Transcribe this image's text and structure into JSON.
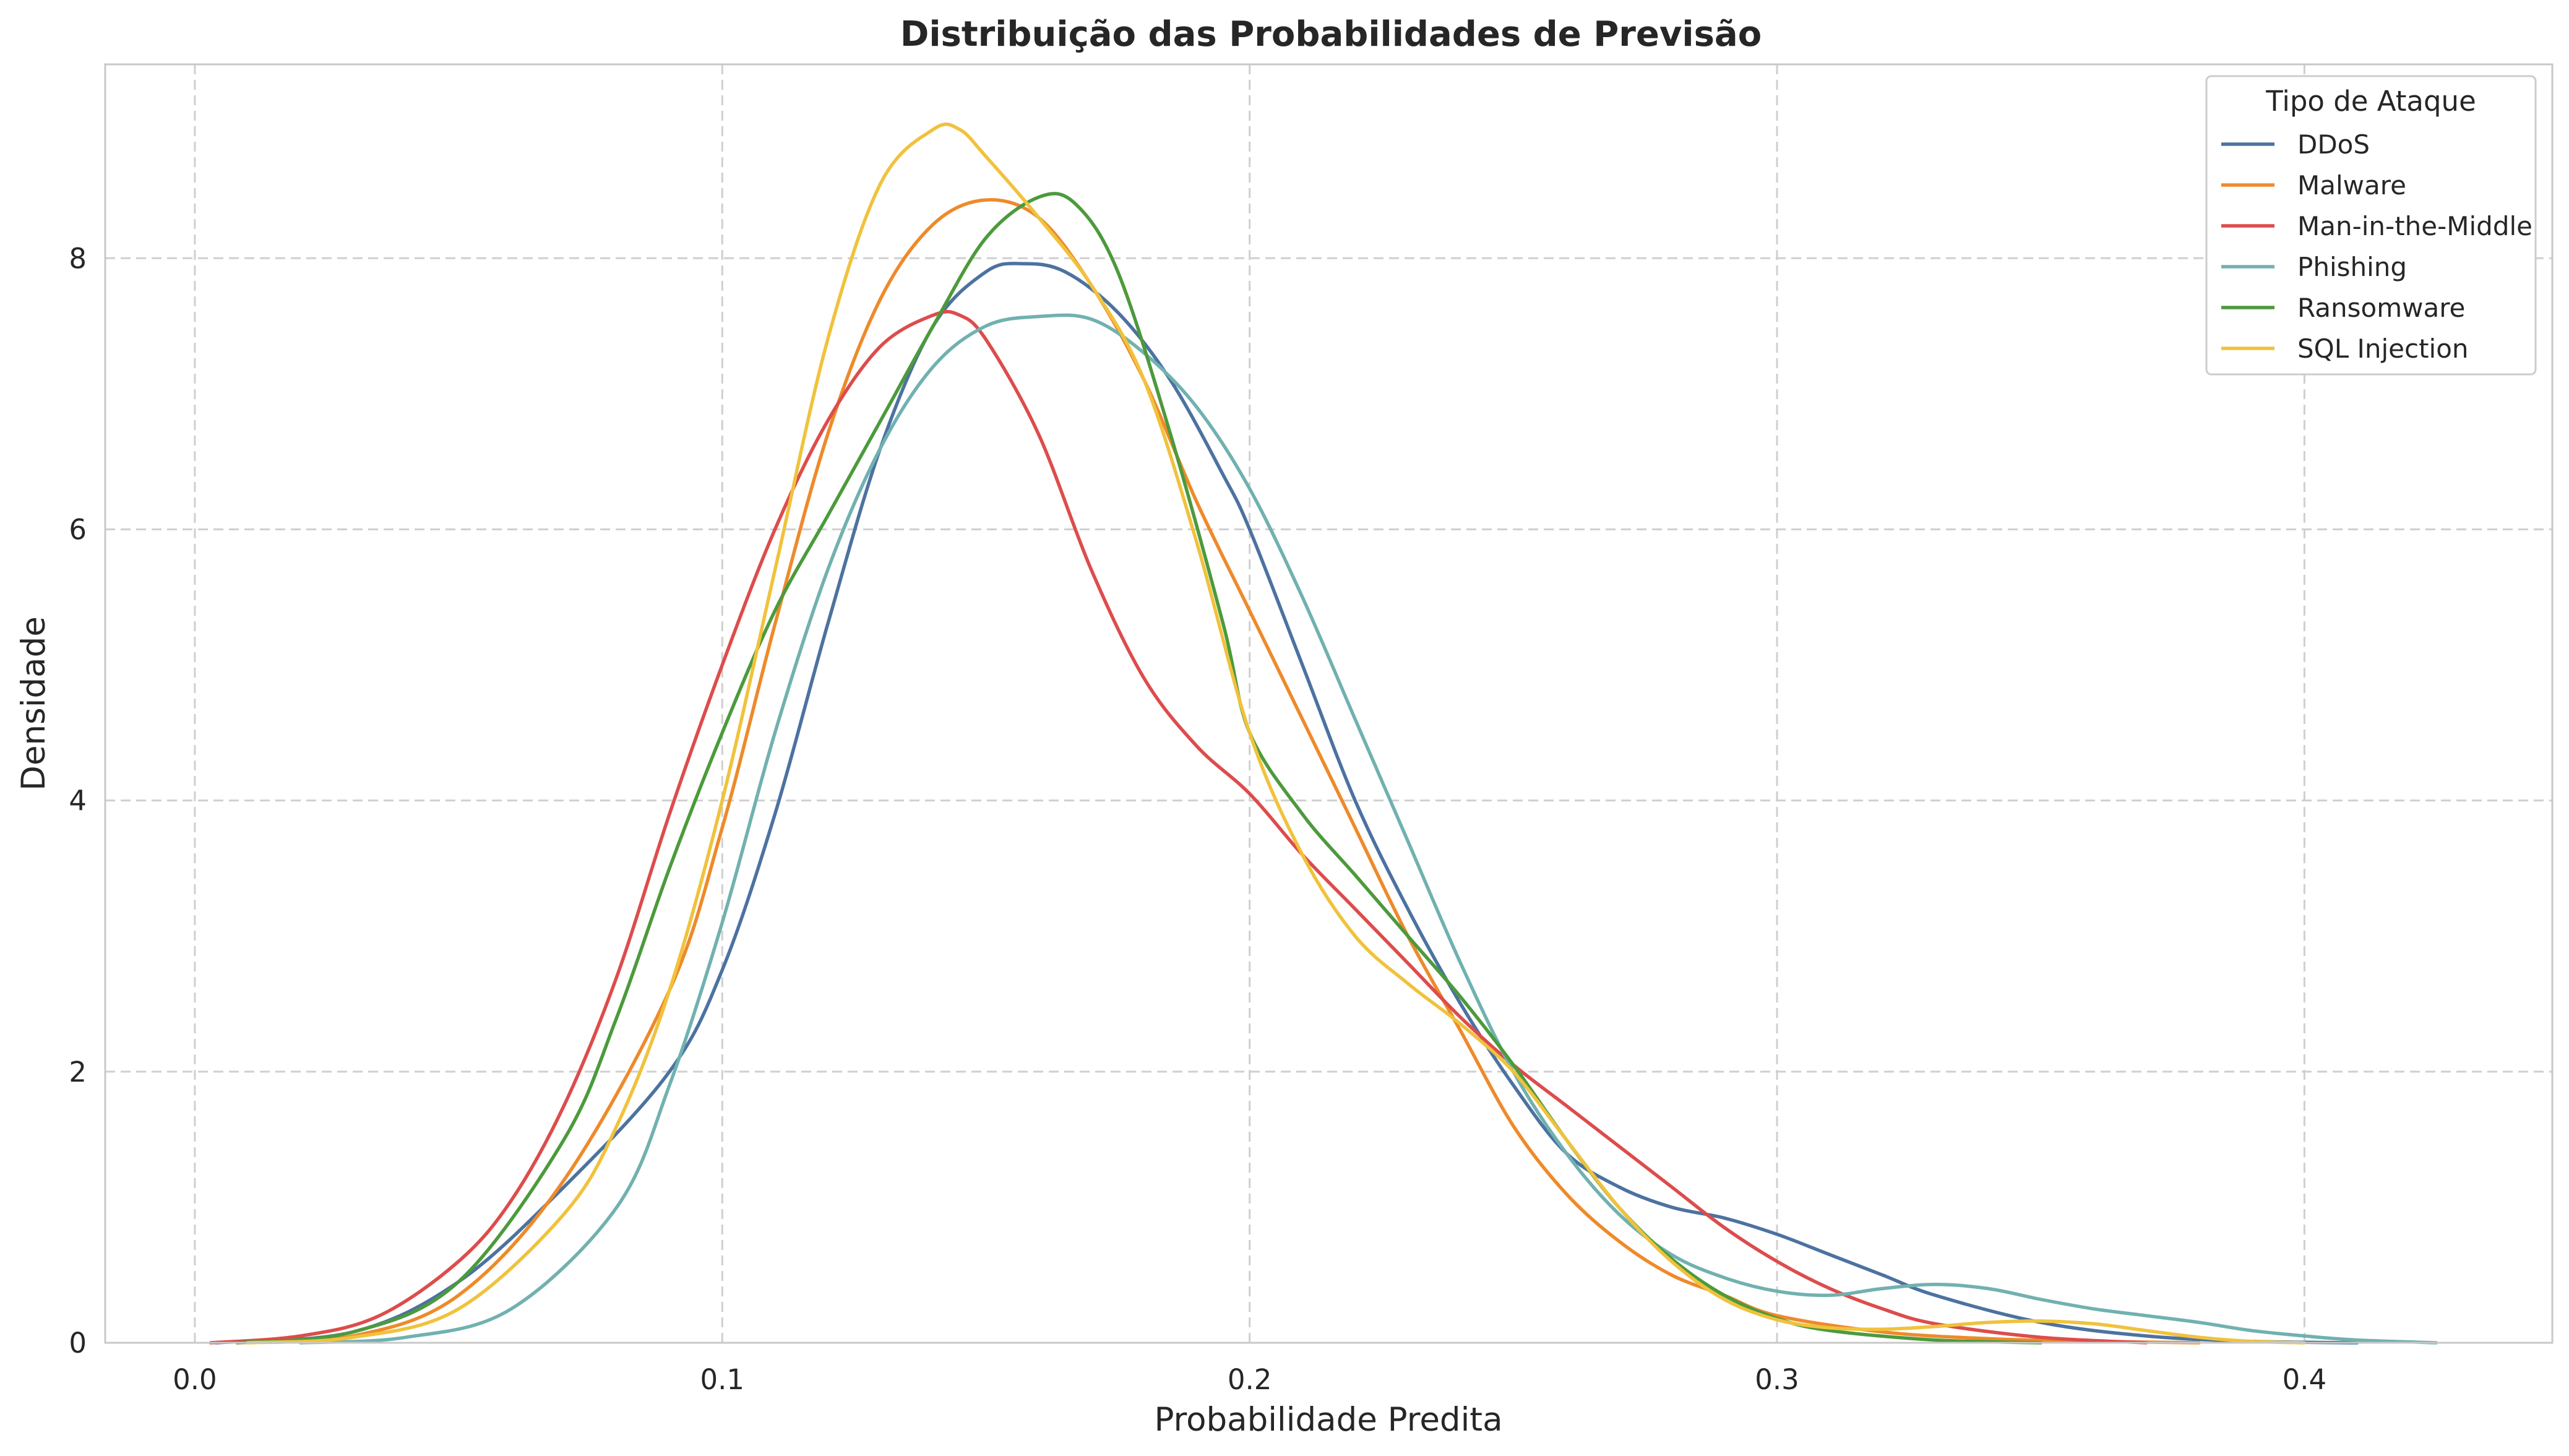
{
  "chart_data": {
    "type": "line",
    "title": "Distribuição das Probabilidades de Previsão",
    "xlabel": "Probabilidade Predita",
    "ylabel": "Densidade",
    "xlim": [
      -0.017,
      0.447
    ],
    "ylim": [
      0,
      9.43
    ],
    "xticks": [
      0.0,
      0.1,
      0.2,
      0.3,
      0.4
    ],
    "xtick_labels": [
      "0.0",
      "0.1",
      "0.2",
      "0.3",
      "0.4"
    ],
    "yticks": [
      0,
      2,
      4,
      6,
      8
    ],
    "ytick_labels": [
      "0",
      "2",
      "4",
      "6",
      "8"
    ],
    "grid": true,
    "legend": {
      "title": "Tipo de Ataque",
      "position": "top-right"
    },
    "series": [
      {
        "name": "DDoS",
        "color": "#4c72a0",
        "points": [
          [
            0.004,
            0
          ],
          [
            0.03,
            0.08
          ],
          [
            0.05,
            0.45
          ],
          [
            0.07,
            1.15
          ],
          [
            0.09,
            2.0
          ],
          [
            0.1,
            2.75
          ],
          [
            0.11,
            3.9
          ],
          [
            0.12,
            5.3
          ],
          [
            0.13,
            6.6
          ],
          [
            0.14,
            7.5
          ],
          [
            0.15,
            7.9
          ],
          [
            0.157,
            7.96
          ],
          [
            0.165,
            7.9
          ],
          [
            0.175,
            7.6
          ],
          [
            0.185,
            7.1
          ],
          [
            0.195,
            6.4
          ],
          [
            0.2,
            6.0
          ],
          [
            0.21,
            5.0
          ],
          [
            0.22,
            4.0
          ],
          [
            0.23,
            3.2
          ],
          [
            0.24,
            2.5
          ],
          [
            0.25,
            1.9
          ],
          [
            0.26,
            1.4
          ],
          [
            0.27,
            1.15
          ],
          [
            0.28,
            1.0
          ],
          [
            0.29,
            0.92
          ],
          [
            0.3,
            0.8
          ],
          [
            0.31,
            0.65
          ],
          [
            0.32,
            0.5
          ],
          [
            0.33,
            0.35
          ],
          [
            0.35,
            0.15
          ],
          [
            0.37,
            0.05
          ],
          [
            0.39,
            0.01
          ],
          [
            0.41,
            0
          ]
        ]
      },
      {
        "name": "Malware",
        "color": "#ee8a2a",
        "points": [
          [
            0.008,
            0
          ],
          [
            0.03,
            0.05
          ],
          [
            0.05,
            0.35
          ],
          [
            0.07,
            1.2
          ],
          [
            0.09,
            2.6
          ],
          [
            0.1,
            3.8
          ],
          [
            0.11,
            5.3
          ],
          [
            0.12,
            6.7
          ],
          [
            0.13,
            7.7
          ],
          [
            0.14,
            8.25
          ],
          [
            0.15,
            8.43
          ],
          [
            0.16,
            8.3
          ],
          [
            0.17,
            7.8
          ],
          [
            0.18,
            7.1
          ],
          [
            0.19,
            6.2
          ],
          [
            0.2,
            5.4
          ],
          [
            0.21,
            4.6
          ],
          [
            0.22,
            3.8
          ],
          [
            0.23,
            3.0
          ],
          [
            0.24,
            2.3
          ],
          [
            0.25,
            1.6
          ],
          [
            0.26,
            1.1
          ],
          [
            0.27,
            0.75
          ],
          [
            0.28,
            0.5
          ],
          [
            0.29,
            0.35
          ],
          [
            0.3,
            0.2
          ],
          [
            0.32,
            0.08
          ],
          [
            0.34,
            0.03
          ],
          [
            0.36,
            0.01
          ],
          [
            0.38,
            0
          ]
        ]
      },
      {
        "name": "Man-in-the-Middle",
        "color": "#dd4c4c",
        "points": [
          [
            0.003,
            0
          ],
          [
            0.02,
            0.05
          ],
          [
            0.035,
            0.2
          ],
          [
            0.05,
            0.6
          ],
          [
            0.06,
            1.05
          ],
          [
            0.07,
            1.75
          ],
          [
            0.08,
            2.7
          ],
          [
            0.09,
            3.9
          ],
          [
            0.1,
            5.0
          ],
          [
            0.11,
            6.0
          ],
          [
            0.12,
            6.8
          ],
          [
            0.13,
            7.35
          ],
          [
            0.14,
            7.58
          ],
          [
            0.145,
            7.58
          ],
          [
            0.15,
            7.4
          ],
          [
            0.16,
            6.7
          ],
          [
            0.17,
            5.7
          ],
          [
            0.18,
            4.9
          ],
          [
            0.19,
            4.4
          ],
          [
            0.2,
            4.05
          ],
          [
            0.21,
            3.6
          ],
          [
            0.22,
            3.2
          ],
          [
            0.23,
            2.8
          ],
          [
            0.24,
            2.4
          ],
          [
            0.25,
            2.05
          ],
          [
            0.26,
            1.75
          ],
          [
            0.27,
            1.45
          ],
          [
            0.28,
            1.15
          ],
          [
            0.29,
            0.85
          ],
          [
            0.3,
            0.6
          ],
          [
            0.31,
            0.4
          ],
          [
            0.32,
            0.25
          ],
          [
            0.33,
            0.14
          ],
          [
            0.35,
            0.04
          ],
          [
            0.37,
            0
          ]
        ]
      },
      {
        "name": "Phishing",
        "color": "#71b1b0",
        "points": [
          [
            0.02,
            0
          ],
          [
            0.04,
            0.04
          ],
          [
            0.06,
            0.25
          ],
          [
            0.08,
            1.0
          ],
          [
            0.09,
            1.9
          ],
          [
            0.1,
            3.1
          ],
          [
            0.11,
            4.5
          ],
          [
            0.12,
            5.7
          ],
          [
            0.13,
            6.6
          ],
          [
            0.14,
            7.2
          ],
          [
            0.15,
            7.5
          ],
          [
            0.16,
            7.57
          ],
          [
            0.17,
            7.55
          ],
          [
            0.18,
            7.3
          ],
          [
            0.19,
            6.9
          ],
          [
            0.2,
            6.3
          ],
          [
            0.21,
            5.5
          ],
          [
            0.22,
            4.6
          ],
          [
            0.23,
            3.7
          ],
          [
            0.24,
            2.8
          ],
          [
            0.25,
            2.0
          ],
          [
            0.26,
            1.4
          ],
          [
            0.27,
            0.95
          ],
          [
            0.28,
            0.65
          ],
          [
            0.29,
            0.48
          ],
          [
            0.3,
            0.38
          ],
          [
            0.31,
            0.35
          ],
          [
            0.32,
            0.4
          ],
          [
            0.33,
            0.43
          ],
          [
            0.34,
            0.4
          ],
          [
            0.35,
            0.32
          ],
          [
            0.36,
            0.25
          ],
          [
            0.37,
            0.2
          ],
          [
            0.38,
            0.15
          ],
          [
            0.39,
            0.09
          ],
          [
            0.4,
            0.05
          ],
          [
            0.41,
            0.02
          ],
          [
            0.425,
            0
          ]
        ]
      },
      {
        "name": "Ransomware",
        "color": "#4c9a3c",
        "points": [
          [
            0.008,
            0
          ],
          [
            0.03,
            0.08
          ],
          [
            0.05,
            0.45
          ],
          [
            0.07,
            1.5
          ],
          [
            0.08,
            2.4
          ],
          [
            0.09,
            3.5
          ],
          [
            0.1,
            4.5
          ],
          [
            0.11,
            5.4
          ],
          [
            0.12,
            6.1
          ],
          [
            0.13,
            6.8
          ],
          [
            0.14,
            7.5
          ],
          [
            0.15,
            8.15
          ],
          [
            0.16,
            8.45
          ],
          [
            0.167,
            8.4
          ],
          [
            0.175,
            7.9
          ],
          [
            0.185,
            6.7
          ],
          [
            0.195,
            5.3
          ],
          [
            0.2,
            4.5
          ],
          [
            0.21,
            3.9
          ],
          [
            0.22,
            3.45
          ],
          [
            0.23,
            3.0
          ],
          [
            0.24,
            2.55
          ],
          [
            0.25,
            2.05
          ],
          [
            0.26,
            1.5
          ],
          [
            0.27,
            1.0
          ],
          [
            0.28,
            0.62
          ],
          [
            0.29,
            0.35
          ],
          [
            0.3,
            0.18
          ],
          [
            0.31,
            0.09
          ],
          [
            0.33,
            0.02
          ],
          [
            0.35,
            0
          ]
        ]
      },
      {
        "name": "SQL Injection",
        "color": "#f0c23c",
        "points": [
          [
            0.01,
            0
          ],
          [
            0.03,
            0.04
          ],
          [
            0.05,
            0.25
          ],
          [
            0.07,
            0.95
          ],
          [
            0.08,
            1.6
          ],
          [
            0.09,
            2.6
          ],
          [
            0.1,
            4.0
          ],
          [
            0.11,
            5.7
          ],
          [
            0.12,
            7.4
          ],
          [
            0.13,
            8.55
          ],
          [
            0.14,
            8.95
          ],
          [
            0.145,
            8.95
          ],
          [
            0.15,
            8.75
          ],
          [
            0.16,
            8.3
          ],
          [
            0.17,
            7.8
          ],
          [
            0.18,
            7.1
          ],
          [
            0.19,
            5.9
          ],
          [
            0.2,
            4.5
          ],
          [
            0.21,
            3.6
          ],
          [
            0.22,
            3.0
          ],
          [
            0.23,
            2.65
          ],
          [
            0.24,
            2.35
          ],
          [
            0.25,
            2.0
          ],
          [
            0.26,
            1.5
          ],
          [
            0.27,
            1.0
          ],
          [
            0.28,
            0.6
          ],
          [
            0.29,
            0.32
          ],
          [
            0.3,
            0.17
          ],
          [
            0.31,
            0.11
          ],
          [
            0.32,
            0.1
          ],
          [
            0.33,
            0.12
          ],
          [
            0.34,
            0.15
          ],
          [
            0.35,
            0.16
          ],
          [
            0.36,
            0.14
          ],
          [
            0.37,
            0.09
          ],
          [
            0.38,
            0.04
          ],
          [
            0.39,
            0.01
          ],
          [
            0.4,
            0
          ]
        ]
      }
    ]
  }
}
